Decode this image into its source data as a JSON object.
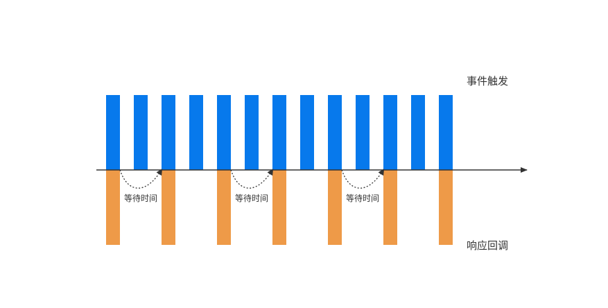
{
  "labels": {
    "events": "事件触发",
    "callbacks": "响应回调",
    "wait": "等待时间"
  },
  "colors": {
    "event_bar": "#0779ec",
    "callback_bar": "#ee9a48",
    "axis": "#333333",
    "text": "#333333"
  },
  "diagram": {
    "event_count": 13,
    "callback_indices": [
      0,
      2,
      4,
      6,
      8,
      10,
      12
    ],
    "wait_intervals": [
      [
        0,
        2
      ],
      [
        4,
        6
      ],
      [
        8,
        10
      ]
    ]
  }
}
